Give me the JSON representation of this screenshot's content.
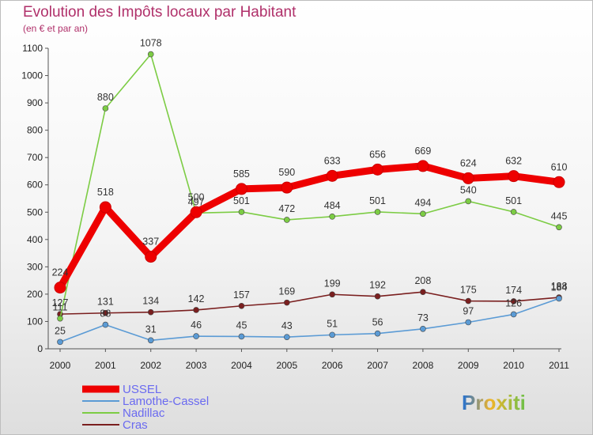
{
  "title": "Evolution des Impôts locaux par Habitant",
  "subtitle": "(en € et par an)",
  "logo_text": "Proxiti",
  "chart_data": {
    "type": "line",
    "title": "Evolution des Impôts locaux par Habitant",
    "subtitle": "(en € et par an)",
    "x": [
      "2000",
      "2001",
      "2002",
      "2003",
      "2004",
      "2005",
      "2006",
      "2007",
      "2008",
      "2009",
      "2010",
      "2011"
    ],
    "ylim": [
      0,
      1100
    ],
    "yticks": [
      0,
      100,
      200,
      300,
      400,
      500,
      600,
      700,
      800,
      900,
      1000,
      1100
    ],
    "grid": false,
    "legend_position": "bottom-left",
    "series": [
      {
        "name": "USSEL",
        "color": "#ee0000",
        "values": [
          224,
          518,
          337,
          500,
          585,
          590,
          633,
          656,
          669,
          624,
          632,
          610
        ]
      },
      {
        "name": "Lamothe-Cassel",
        "color": "#5b9bd5",
        "values": [
          25,
          88,
          31,
          46,
          45,
          43,
          51,
          56,
          73,
          97,
          126,
          184
        ]
      },
      {
        "name": "Nadillac",
        "color": "#7ccc44",
        "values": [
          111,
          880,
          1078,
          497,
          501,
          472,
          484,
          501,
          494,
          540,
          501,
          445
        ]
      },
      {
        "name": "Cras",
        "color": "#7a1f1f",
        "values": [
          127,
          131,
          134,
          142,
          157,
          169,
          199,
          192,
          208,
          175,
          174,
          188
        ]
      }
    ]
  }
}
